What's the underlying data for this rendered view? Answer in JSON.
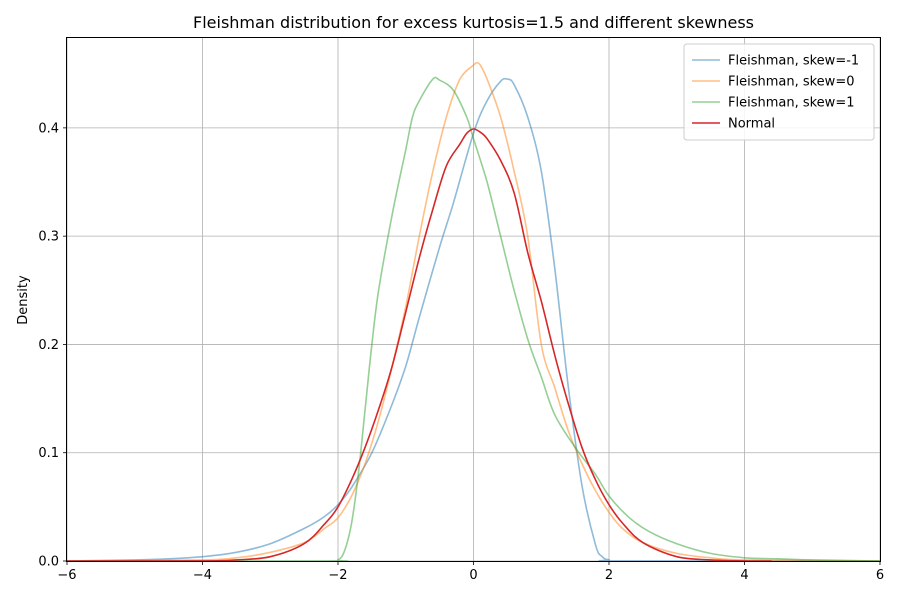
{
  "chart_data": {
    "type": "line",
    "title": "Fleishman distribution for excess kurtosis=1.5 and different skewness",
    "xlabel": "",
    "ylabel": "Density",
    "xlim": [
      -6,
      6
    ],
    "ylim": [
      0,
      0.483
    ],
    "xticks": [
      -6,
      -4,
      -2,
      0,
      2,
      4,
      6
    ],
    "xtick_labels": [
      "−6",
      "−4",
      "−2",
      "0",
      "2",
      "4",
      "6"
    ],
    "yticks": [
      0.0,
      0.1,
      0.2,
      0.3,
      0.4
    ],
    "ytick_labels": [
      "0.0",
      "0.1",
      "0.2",
      "0.3",
      "0.4"
    ],
    "grid": true,
    "legend_position": "top-right",
    "series": [
      {
        "name": "Fleishman, skew=-1",
        "color": "#1f77b4",
        "opacity": 0.5,
        "points": [
          [
            -6,
            0
          ],
          [
            -5,
            0.001
          ],
          [
            -4.5,
            0.002
          ],
          [
            -4,
            0.004
          ],
          [
            -3.5,
            0.008
          ],
          [
            -3,
            0.016
          ],
          [
            -2.5,
            0.03
          ],
          [
            -2.2,
            0.041
          ],
          [
            -2,
            0.052
          ],
          [
            -1.8,
            0.068
          ],
          [
            -1.5,
            0.1
          ],
          [
            -1.2,
            0.145
          ],
          [
            -1,
            0.18
          ],
          [
            -0.8,
            0.225
          ],
          [
            -0.5,
            0.29
          ],
          [
            -0.3,
            0.33
          ],
          [
            0,
            0.395
          ],
          [
            0.2,
            0.425
          ],
          [
            0.4,
            0.443
          ],
          [
            0.5,
            0.445
          ],
          [
            0.6,
            0.44
          ],
          [
            0.8,
            0.41
          ],
          [
            1,
            0.36
          ],
          [
            1.2,
            0.27
          ],
          [
            1.4,
            0.16
          ],
          [
            1.6,
            0.07
          ],
          [
            1.8,
            0.015
          ],
          [
            1.9,
            0.004
          ],
          [
            2,
            0.001
          ],
          [
            2.2,
            0
          ],
          [
            6,
            0
          ]
        ]
      },
      {
        "name": "Fleishman, skew=0",
        "color": "#ff7f0e",
        "opacity": 0.5,
        "points": [
          [
            -6,
            0
          ],
          [
            -4,
            0.001
          ],
          [
            -3.5,
            0.003
          ],
          [
            -3,
            0.008
          ],
          [
            -2.5,
            0.017
          ],
          [
            -2.2,
            0.03
          ],
          [
            -2,
            0.04
          ],
          [
            -1.8,
            0.06
          ],
          [
            -1.6,
            0.09
          ],
          [
            -1.4,
            0.13
          ],
          [
            -1.2,
            0.18
          ],
          [
            -1,
            0.235
          ],
          [
            -0.8,
            0.3
          ],
          [
            -0.6,
            0.36
          ],
          [
            -0.4,
            0.41
          ],
          [
            -0.2,
            0.445
          ],
          [
            0,
            0.458
          ],
          [
            0.05,
            0.46
          ],
          [
            0.1,
            0.458
          ],
          [
            0.2,
            0.445
          ],
          [
            0.4,
            0.41
          ],
          [
            0.6,
            0.36
          ],
          [
            0.8,
            0.3
          ],
          [
            1,
            0.2
          ],
          [
            1.2,
            0.16
          ],
          [
            1.4,
            0.12
          ],
          [
            1.6,
            0.09
          ],
          [
            1.8,
            0.065
          ],
          [
            2,
            0.045
          ],
          [
            2.2,
            0.03
          ],
          [
            2.5,
            0.017
          ],
          [
            3,
            0.007
          ],
          [
            3.5,
            0.003
          ],
          [
            4,
            0.001
          ],
          [
            6,
            0
          ]
        ]
      },
      {
        "name": "Fleishman, skew=1",
        "color": "#2ca02c",
        "opacity": 0.5,
        "points": [
          [
            -6,
            0
          ],
          [
            -2.2,
            0
          ],
          [
            -2,
            0.001
          ],
          [
            -1.9,
            0.01
          ],
          [
            -1.8,
            0.035
          ],
          [
            -1.7,
            0.08
          ],
          [
            -1.6,
            0.14
          ],
          [
            -1.5,
            0.2
          ],
          [
            -1.4,
            0.25
          ],
          [
            -1.2,
            0.32
          ],
          [
            -1,
            0.38
          ],
          [
            -0.9,
            0.41
          ],
          [
            -0.8,
            0.425
          ],
          [
            -0.6,
            0.445
          ],
          [
            -0.5,
            0.444
          ],
          [
            -0.3,
            0.435
          ],
          [
            -0.1,
            0.41
          ],
          [
            0,
            0.39
          ],
          [
            0.2,
            0.35
          ],
          [
            0.4,
            0.3
          ],
          [
            0.6,
            0.25
          ],
          [
            0.8,
            0.205
          ],
          [
            1,
            0.17
          ],
          [
            1.2,
            0.135
          ],
          [
            1.5,
            0.105
          ],
          [
            1.8,
            0.08
          ],
          [
            2,
            0.06
          ],
          [
            2.3,
            0.04
          ],
          [
            2.6,
            0.027
          ],
          [
            3,
            0.016
          ],
          [
            3.5,
            0.007
          ],
          [
            4,
            0.003
          ],
          [
            4.5,
            0.002
          ],
          [
            5,
            0.001
          ],
          [
            6,
            0
          ]
        ]
      },
      {
        "name": "Normal",
        "color": "#d62728",
        "opacity": 1,
        "points": [
          [
            -6,
            0
          ],
          [
            -4,
            0.0001
          ],
          [
            -3.5,
            0.001
          ],
          [
            -3,
            0.004
          ],
          [
            -2.5,
            0.016
          ],
          [
            -2.2,
            0.034
          ],
          [
            -2,
            0.05
          ],
          [
            -1.8,
            0.075
          ],
          [
            -1.6,
            0.105
          ],
          [
            -1.4,
            0.14
          ],
          [
            -1.2,
            0.18
          ],
          [
            -1,
            0.23
          ],
          [
            -0.8,
            0.28
          ],
          [
            -0.6,
            0.325
          ],
          [
            -0.4,
            0.365
          ],
          [
            -0.2,
            0.385
          ],
          [
            -0.1,
            0.395
          ],
          [
            0,
            0.399
          ],
          [
            0.1,
            0.396
          ],
          [
            0.2,
            0.39
          ],
          [
            0.4,
            0.37
          ],
          [
            0.6,
            0.34
          ],
          [
            0.8,
            0.285
          ],
          [
            1,
            0.24
          ],
          [
            1.2,
            0.19
          ],
          [
            1.4,
            0.145
          ],
          [
            1.6,
            0.105
          ],
          [
            1.8,
            0.075
          ],
          [
            2,
            0.052
          ],
          [
            2.2,
            0.035
          ],
          [
            2.5,
            0.017
          ],
          [
            3,
            0.004
          ],
          [
            3.5,
            0.001
          ],
          [
            4,
            0.0001
          ],
          [
            4.4,
            0
          ]
        ]
      }
    ]
  }
}
